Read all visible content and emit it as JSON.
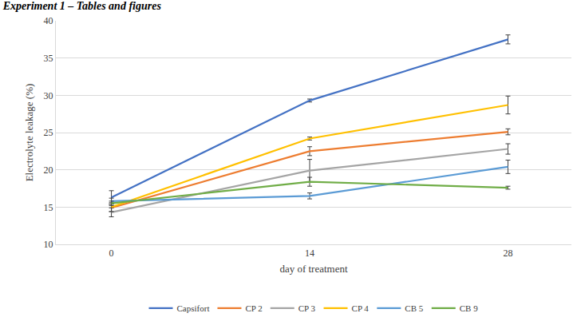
{
  "chart_data": {
    "type": "line",
    "title": "Experiment 1 – Tables and figures",
    "x_label": "day of treatment",
    "y_label": "Electrolyte leakage (%)",
    "categories": [
      "0",
      "14",
      "28"
    ],
    "series": [
      {
        "name": "Capsifort",
        "color": "#4472c4",
        "values": [
          16.3,
          29.3,
          37.5
        ],
        "errors": [
          0.9,
          0.2,
          0.6
        ]
      },
      {
        "name": "CP 2",
        "color": "#ed7d31",
        "values": [
          14.9,
          22.5,
          25.1
        ],
        "errors": [
          0.5,
          0.6,
          0.4
        ]
      },
      {
        "name": "CP 3",
        "color": "#a5a5a5",
        "values": [
          14.3,
          19.9,
          22.8
        ],
        "errors": [
          0.6,
          1.5,
          0.7
        ]
      },
      {
        "name": "CP 4",
        "color": "#ffc000",
        "values": [
          15.0,
          24.2,
          28.7
        ],
        "errors": [
          0.6,
          0.2,
          1.2
        ]
      },
      {
        "name": "CB 5",
        "color": "#5b9bd5",
        "values": [
          15.8,
          16.5,
          20.4
        ],
        "errors": [
          0.4,
          0.4,
          0.9
        ]
      },
      {
        "name": "CB 9",
        "color": "#70ad47",
        "values": [
          15.5,
          18.4,
          17.6
        ],
        "errors": [
          0.3,
          0.6,
          0.2
        ]
      }
    ],
    "ylim": [
      10,
      40
    ],
    "yticks": [
      10,
      15,
      20,
      25,
      30,
      35,
      40
    ],
    "grid": true,
    "legend": "bottom"
  }
}
